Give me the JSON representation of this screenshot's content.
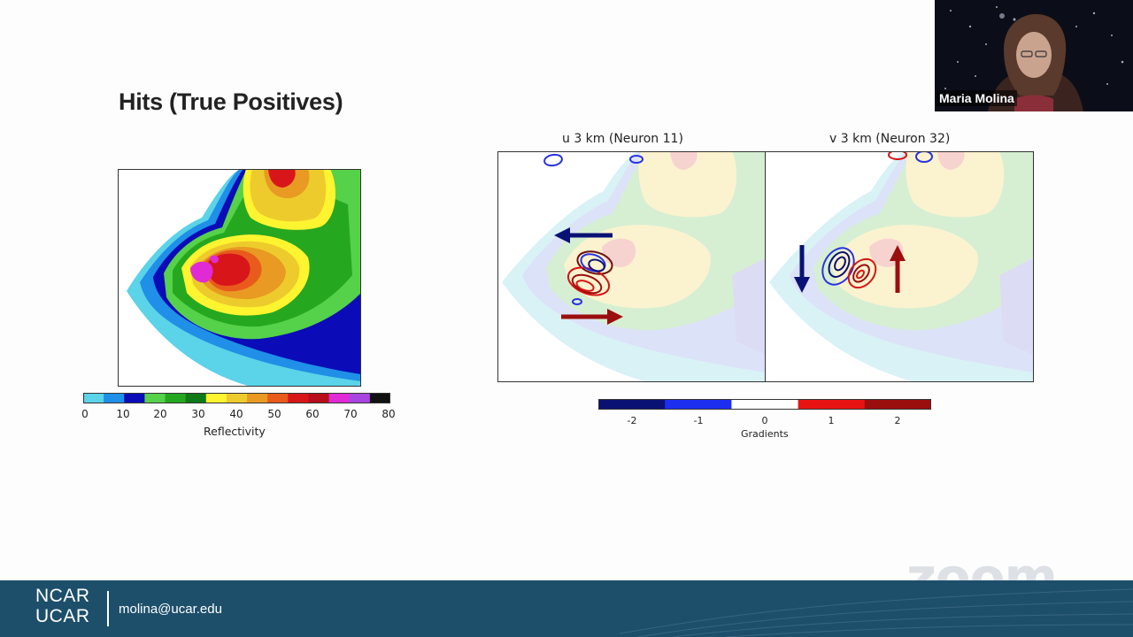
{
  "slide": {
    "title": "Hits (True Positives)",
    "reflectivity_colorbar": {
      "label": "Reflectivity",
      "ticks": [
        "0",
        "10",
        "20",
        "30",
        "40",
        "50",
        "60",
        "70",
        "80"
      ],
      "colors": [
        "#5bd3e8",
        "#1f8fe8",
        "#0b0bb8",
        "#55d14a",
        "#25a81f",
        "#0f7a16",
        "#fff430",
        "#eecb2c",
        "#e89a22",
        "#e85b1c",
        "#d8161a",
        "#b80d1a",
        "#e02ad6",
        "#a844e0",
        "#111111"
      ]
    },
    "gradients_colorbar": {
      "label": "Gradients",
      "ticks": [
        "-2",
        "-1",
        "0",
        "1",
        "2"
      ],
      "colors": [
        "#0a1175",
        "#1c2ff0",
        "#ffffff",
        "#e81414",
        "#9b0e0e"
      ]
    },
    "panel_u": {
      "title": "u 3 km (Neuron 11)"
    },
    "panel_v": {
      "title": "v 3 km (Neuron 32)"
    }
  },
  "footer": {
    "logo_line1": "NCAR",
    "logo_line2": "UCAR",
    "email": "molina@ucar.edu"
  },
  "video": {
    "participant_name": "Maria Molina"
  },
  "watermark": "zoom"
}
